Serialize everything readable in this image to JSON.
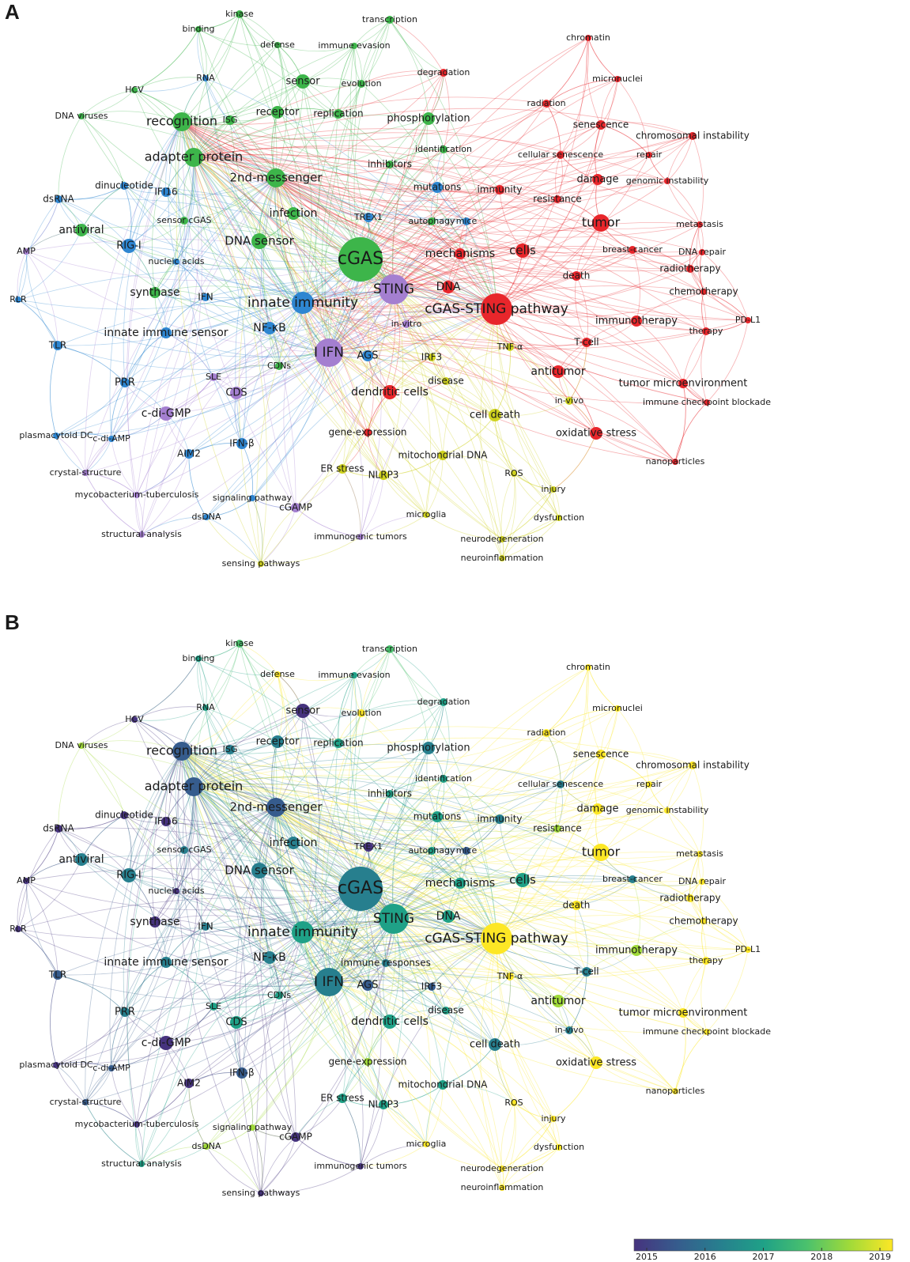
{
  "panels": [
    "A",
    "B"
  ],
  "nodes": [
    {
      "label": "kinase",
      "colors": [
        "#3db54a",
        "#4ac16d"
      ]
    },
    {
      "label": "binding",
      "colors": [
        "#3db54a",
        "#1fa187"
      ]
    },
    {
      "label": "defense",
      "colors": [
        "#3db54a",
        "#fde725"
      ]
    },
    {
      "label": "transcription",
      "colors": [
        "#3db54a",
        "#4ac16d"
      ]
    },
    {
      "label": "immune evasion",
      "colors": [
        "#3db54a",
        "#1fa187"
      ]
    },
    {
      "label": "chromatin",
      "colors": [
        "#e8262b",
        "#fde725"
      ]
    },
    {
      "label": "degradation",
      "colors": [
        "#e8262b",
        "#1fa187"
      ]
    },
    {
      "label": "micronuclei",
      "colors": [
        "#e8262b",
        "#fde725"
      ]
    },
    {
      "label": "HCV",
      "colors": [
        "#3db54a",
        "#46337e"
      ]
    },
    {
      "label": "RNA",
      "colors": [
        "#2e86d1",
        "#1fa187"
      ]
    },
    {
      "label": "sensor",
      "colors": [
        "#3db54a",
        "#46337e"
      ]
    },
    {
      "label": "evolution",
      "colors": [
        "#3db54a",
        "#fde725"
      ]
    },
    {
      "label": "radiation",
      "colors": [
        "#e8262b",
        "#fde725"
      ]
    },
    {
      "label": "DNA viruses",
      "colors": [
        "#3db54a",
        "#a0da39"
      ]
    },
    {
      "label": "recognition",
      "colors": [
        "#3db54a",
        "#365c8d"
      ]
    },
    {
      "label": "ISG",
      "colors": [
        "#3db54a",
        "#277f8e"
      ]
    },
    {
      "label": "receptor",
      "colors": [
        "#3db54a",
        "#277f8e"
      ]
    },
    {
      "label": "replication",
      "colors": [
        "#3db54a",
        "#1fa187"
      ]
    },
    {
      "label": "phosphorylation",
      "colors": [
        "#3db54a",
        "#277f8e"
      ]
    },
    {
      "label": "senescence",
      "colors": [
        "#e8262b",
        "#fde725"
      ]
    },
    {
      "label": "chromosomal instability",
      "colors": [
        "#e8262b",
        "#fde725"
      ]
    },
    {
      "label": "identification",
      "colors": [
        "#3db54a",
        "#1fa187"
      ]
    },
    {
      "label": "cellular senescence",
      "colors": [
        "#e8262b",
        "#277f8e"
      ]
    },
    {
      "label": "repair",
      "colors": [
        "#e8262b",
        "#fde725"
      ]
    },
    {
      "label": "adapter protein",
      "colors": [
        "#3db54a",
        "#365c8d"
      ]
    },
    {
      "label": "inhibitors",
      "colors": [
        "#3db54a",
        "#1fa187"
      ]
    },
    {
      "label": "2nd-messenger",
      "colors": [
        "#3db54a",
        "#365c8d"
      ]
    },
    {
      "label": "damage",
      "colors": [
        "#e8262b",
        "#fde725"
      ]
    },
    {
      "label": "genomic instability",
      "colors": [
        "#e8262b",
        "#fde725"
      ]
    },
    {
      "label": "dinucleotide",
      "colors": [
        "#2e86d1",
        "#46337e"
      ]
    },
    {
      "label": "IFI16",
      "colors": [
        "#2e86d1",
        "#46337e"
      ]
    },
    {
      "label": "mutations",
      "colors": [
        "#2e86d1",
        "#1fa187"
      ]
    },
    {
      "label": "immunity",
      "colors": [
        "#e8262b",
        "#277f8e"
      ]
    },
    {
      "label": "dsRNA",
      "colors": [
        "#2e86d1",
        "#46337e"
      ]
    },
    {
      "label": "resistance",
      "colors": [
        "#e8262b",
        "#a0da39"
      ]
    },
    {
      "label": "infection",
      "colors": [
        "#3db54a",
        "#277f8e"
      ]
    },
    {
      "label": "TREX1",
      "colors": [
        "#2e86d1",
        "#46337e"
      ]
    },
    {
      "label": "antiviral",
      "colors": [
        "#3db54a",
        "#277f8e"
      ]
    },
    {
      "label": "sensor cGAS",
      "colors": [
        "#3db54a",
        "#277f8e"
      ]
    },
    {
      "label": "autophagy",
      "colors": [
        "#3db54a",
        "#1fa187"
      ]
    },
    {
      "label": "mice",
      "colors": [
        "#2e86d1",
        "#365c8d"
      ]
    },
    {
      "label": "tumor",
      "colors": [
        "#e8262b",
        "#fde725"
      ]
    },
    {
      "label": "metastasis",
      "colors": [
        "#e8262b",
        "#fde725"
      ]
    },
    {
      "label": "AMP",
      "colors": [
        "#a47fd0",
        "#46337e"
      ]
    },
    {
      "label": "RIG-I",
      "colors": [
        "#2e86d1",
        "#277f8e"
      ]
    },
    {
      "label": "DNA sensor",
      "colors": [
        "#3db54a",
        "#277f8e"
      ]
    },
    {
      "label": "nucleic acids",
      "colors": [
        "#2e86d1",
        "#46337e"
      ]
    },
    {
      "label": "cGAS",
      "colors": [
        "#3db54a",
        "#277f8e"
      ]
    },
    {
      "label": "mechanisms",
      "colors": [
        "#e8262b",
        "#1fa187"
      ]
    },
    {
      "label": "cells",
      "colors": [
        "#e8262b",
        "#1fa187"
      ]
    },
    {
      "label": "breast-cancer",
      "colors": [
        "#e8262b",
        "#277f8e"
      ]
    },
    {
      "label": "DNA repair",
      "colors": [
        "#e8262b",
        "#fde725"
      ]
    },
    {
      "label": "radiotherapy",
      "colors": [
        "#e8262b",
        "#fde725"
      ]
    },
    {
      "label": "RLR",
      "colors": [
        "#2e86d1",
        "#46337e"
      ]
    },
    {
      "label": "synthase",
      "colors": [
        "#3db54a",
        "#46337e"
      ]
    },
    {
      "label": "IFN",
      "colors": [
        "#2e86d1",
        "#277f8e"
      ]
    },
    {
      "label": "STING",
      "colors": [
        "#a47fd0",
        "#1fa187"
      ]
    },
    {
      "label": "DNA",
      "colors": [
        "#e8262b",
        "#1fa187"
      ]
    },
    {
      "label": "death",
      "colors": [
        "#e8262b",
        "#fde725"
      ]
    },
    {
      "label": "chemotherapy",
      "colors": [
        "#e8262b",
        "#fde725"
      ]
    },
    {
      "label": "innate immunity",
      "colors": [
        "#2e86d1",
        "#1fa187"
      ]
    },
    {
      "label": "cGAS-STING pathway",
      "colors": [
        "#e8262b",
        "#fde725"
      ]
    },
    {
      "label": "PD-L1",
      "colors": [
        "#e8262b",
        "#fde725"
      ]
    },
    {
      "label": "immunotherapy",
      "colors": [
        "#e8262b",
        "#a0da39"
      ]
    },
    {
      "label": "therapy",
      "colors": [
        "#e8262b",
        "#fde725"
      ]
    },
    {
      "label": "innate immune sensor",
      "colors": [
        "#2e86d1",
        "#277f8e"
      ]
    },
    {
      "label": "NF-κB",
      "colors": [
        "#2e86d1",
        "#277f8e"
      ]
    },
    {
      "label": "in-vitro",
      "colors": [
        "#a47fd0",
        null
      ]
    },
    {
      "label": "immune responses",
      "colors": [
        null,
        "#277f8e"
      ]
    },
    {
      "label": "TLR",
      "colors": [
        "#2e86d1",
        "#365c8d"
      ]
    },
    {
      "label": "T-cell",
      "colors": [
        "#e8262b",
        "#277f8e"
      ]
    },
    {
      "label": "I IFN",
      "colors": [
        "#a47fd0",
        "#277f8e"
      ]
    },
    {
      "label": "AGS",
      "colors": [
        "#2e86d1",
        "#365c8d"
      ]
    },
    {
      "label": "IRF3",
      "colors": [
        "#cfd21e",
        "#365c8d"
      ]
    },
    {
      "label": "TNF-α",
      "colors": [
        "#cfd21e",
        "#fde725"
      ]
    },
    {
      "label": "SLE",
      "colors": [
        "#a47fd0",
        "#1fa187"
      ]
    },
    {
      "label": "CDNs",
      "colors": [
        "#3db54a",
        "#1fa187"
      ]
    },
    {
      "label": "antitumor",
      "colors": [
        "#e8262b",
        "#a0da39"
      ]
    },
    {
      "label": "disease",
      "colors": [
        "#cfd21e",
        "#1fa187"
      ]
    },
    {
      "label": "tumor microenvironment",
      "colors": [
        "#e8262b",
        "#fde725"
      ]
    },
    {
      "label": "PRR",
      "colors": [
        "#2e86d1",
        "#277f8e"
      ]
    },
    {
      "label": "CDS",
      "colors": [
        "#a47fd0",
        "#1fa187"
      ]
    },
    {
      "label": "dendritic cells",
      "colors": [
        "#e8262b",
        "#1fa187"
      ]
    },
    {
      "label": "in-vivo",
      "colors": [
        "#cfd21e",
        "#277f8e"
      ]
    },
    {
      "label": "immune checkpoint blockade",
      "colors": [
        "#e8262b",
        "#fde725"
      ]
    },
    {
      "label": "c-di-GMP",
      "colors": [
        "#a47fd0",
        "#46337e"
      ]
    },
    {
      "label": "cell death",
      "colors": [
        "#cfd21e",
        "#277f8e"
      ]
    },
    {
      "label": "oxidative stress",
      "colors": [
        "#e8262b",
        "#fde725"
      ]
    },
    {
      "label": "gene-expression",
      "colors": [
        "#e8262b",
        "#a0da39"
      ]
    },
    {
      "label": "plasmacytoid DC",
      "colors": [
        "#2e86d1",
        "#46337e"
      ]
    },
    {
      "label": "c-di-AMP",
      "colors": [
        "#2e86d1",
        "#365c8d"
      ]
    },
    {
      "label": "AIM2",
      "colors": [
        "#2e86d1",
        "#46337e"
      ]
    },
    {
      "label": "IFN-β",
      "colors": [
        "#2e86d1",
        "#365c8d"
      ]
    },
    {
      "label": "mitochondrial DNA",
      "colors": [
        "#cfd21e",
        "#1fa187"
      ]
    },
    {
      "label": "nanoparticles",
      "colors": [
        "#e8262b",
        "#fde725"
      ]
    },
    {
      "label": "ER stress",
      "colors": [
        "#cfd21e",
        "#1fa187"
      ]
    },
    {
      "label": "crystal-structure",
      "colors": [
        "#a47fd0",
        "#365c8d"
      ]
    },
    {
      "label": "ROS",
      "colors": [
        "#cfd21e",
        "#fde725"
      ]
    },
    {
      "label": "NLRP3",
      "colors": [
        "#cfd21e",
        "#1fa187"
      ]
    },
    {
      "label": "injury",
      "colors": [
        "#cfd21e",
        "#fde725"
      ]
    },
    {
      "label": "mycobacterium-tuberculosis",
      "colors": [
        "#a47fd0",
        "#46337e"
      ]
    },
    {
      "label": "signaling pathway",
      "colors": [
        "#2e86d1",
        "#a0da39"
      ]
    },
    {
      "label": "cGAMP",
      "colors": [
        "#a47fd0",
        "#46337e"
      ]
    },
    {
      "label": "dsDNA",
      "colors": [
        "#2e86d1",
        "#a0da39"
      ]
    },
    {
      "label": "microglia",
      "colors": [
        "#cfd21e",
        "#fde725"
      ]
    },
    {
      "label": "dysfunction",
      "colors": [
        "#cfd21e",
        "#fde725"
      ]
    },
    {
      "label": "structural-analysis",
      "colors": [
        "#a47fd0",
        "#1fa187"
      ]
    },
    {
      "label": "immunogenic tumors",
      "colors": [
        "#a47fd0",
        "#46337e"
      ]
    },
    {
      "label": "neurodegeneration",
      "colors": [
        "#cfd21e",
        "#fde725"
      ]
    },
    {
      "label": "neuroinflammation",
      "colors": [
        "#cfd21e",
        "#fde725"
      ]
    },
    {
      "label": "sensing pathways",
      "colors": [
        "#cfd21e",
        "#46337e"
      ]
    }
  ],
  "colorbar": {
    "colors": [
      "#46337e",
      "#365c8d",
      "#277f8e",
      "#1fa187",
      "#4ac16d",
      "#a0da39",
      "#fde725"
    ],
    "ticks": [
      2015,
      2016,
      2017,
      2018,
      2019
    ]
  }
}
